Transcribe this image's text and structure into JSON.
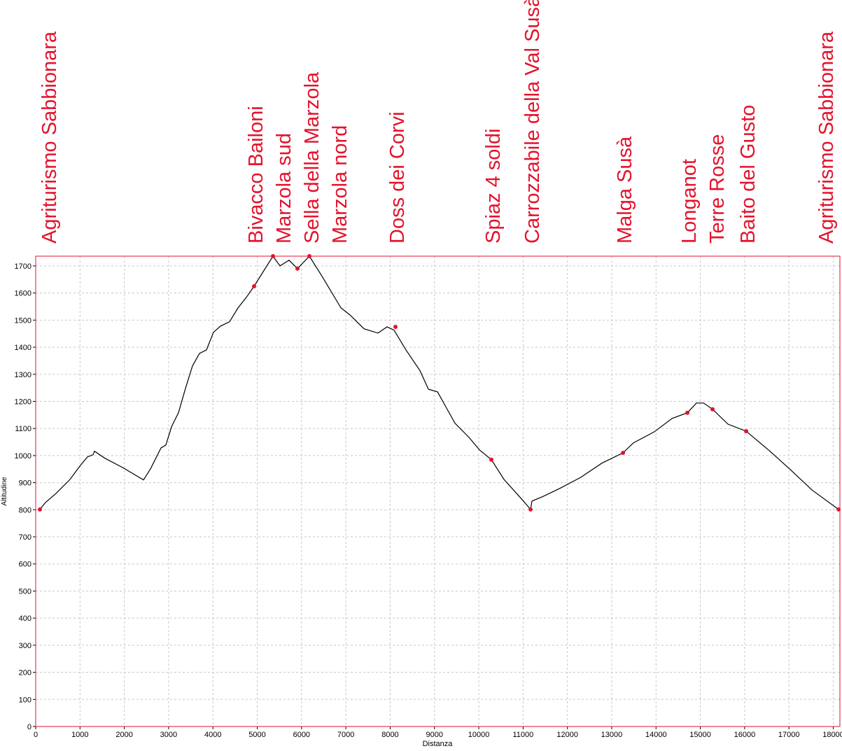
{
  "chart_data": {
    "type": "line",
    "xlabel": "Distanza",
    "ylabel": "Altitudine",
    "xlim": [
      0,
      18150
    ],
    "ylim": [
      0,
      1736
    ],
    "xticks": [
      0,
      1000,
      2000,
      3000,
      4000,
      5000,
      6000,
      7000,
      8000,
      9000,
      10000,
      11000,
      12000,
      13000,
      14000,
      15000,
      16000,
      17000,
      18000
    ],
    "yticks": [
      0,
      100,
      200,
      300,
      400,
      500,
      600,
      700,
      800,
      900,
      1000,
      1100,
      1200,
      1300,
      1400,
      1500,
      1600,
      1700
    ],
    "grid": true,
    "color": "#000000",
    "x": [
      95,
      221,
      458,
      774,
      1011,
      1169,
      1295,
      1327,
      1564,
      1959,
      2433,
      2591,
      2828,
      2938,
      3065,
      3223,
      3381,
      3539,
      3697,
      3855,
      4013,
      4171,
      4376,
      4566,
      4755,
      4929,
      5166,
      5355,
      5513,
      5719,
      5908,
      6177,
      6461,
      6888,
      7093,
      7409,
      7725,
      7930,
      8088,
      8357,
      8673,
      8863,
      9068,
      9463,
      9779,
      10016,
      10284,
      10569,
      10964,
      11169,
      11200,
      11438,
      11833,
      12306,
      12780,
      13255,
      13492,
      13966,
      14360,
      14708,
      14913,
      15071,
      15276,
      15624,
      16035,
      16572,
      17046,
      17520,
      18120
    ],
    "values": [
      801,
      827,
      860,
      912,
      964,
      995,
      1003,
      1016,
      990,
      956,
      910,
      951,
      1028,
      1039,
      1106,
      1158,
      1248,
      1331,
      1377,
      1390,
      1455,
      1478,
      1494,
      1545,
      1584,
      1625,
      1687,
      1736,
      1700,
      1721,
      1690,
      1736,
      1662,
      1545,
      1519,
      1468,
      1452,
      1475,
      1463,
      1390,
      1313,
      1245,
      1235,
      1119,
      1067,
      1021,
      985,
      912,
      840,
      801,
      832,
      848,
      879,
      920,
      972,
      1010,
      1047,
      1088,
      1137,
      1158,
      1194,
      1194,
      1171,
      1116,
      1090,
      1016,
      946,
      873,
      801
    ],
    "waypoints": {
      "color": "#e3132c",
      "labels": [
        "Agriturismo Sabbionara",
        "Bivacco Bailoni",
        "Marzola sud",
        "Sella della Marzola",
        "Marzola nord",
        "Doss dei Corvi",
        "Spiaz 4 soldi",
        "Carrozzabile della Val Susà",
        "Malga Susà",
        "Longanot",
        "Terre Rosse",
        "Baito del Gusto",
        "Agriturismo Sabbionara"
      ],
      "x": [
        95,
        4929,
        5355,
        5908,
        6177,
        8120,
        10284,
        11169,
        13255,
        14708,
        15276,
        16035,
        18120
      ],
      "values": [
        801,
        1625,
        1736,
        1690,
        1736,
        1475,
        985,
        801,
        1010,
        1158,
        1171,
        1090,
        801
      ]
    }
  }
}
